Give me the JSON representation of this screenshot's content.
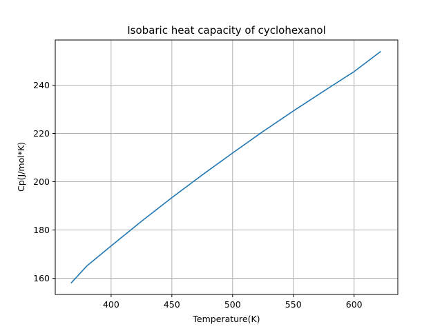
{
  "chart_data": {
    "type": "line",
    "title": "Isobaric heat capacity of cyclohexanol",
    "xlabel": "Temperature(K)",
    "ylabel": "Cp(J/mol*K)",
    "xlim": [
      354,
      636
    ],
    "ylim": [
      153.3,
      258.7
    ],
    "xticks": [
      400,
      450,
      500,
      550,
      600
    ],
    "yticks": [
      160,
      180,
      200,
      220,
      240
    ],
    "grid": true,
    "colors": {
      "line": "#1f77b4",
      "grid": "#b0b0b0",
      "axes": "#000000"
    },
    "series": [
      {
        "x": [
          367,
          380,
          400,
          425,
          450,
          475,
          500,
          525,
          550,
          575,
          600,
          622
        ],
        "y": [
          158.0,
          165.1,
          173.4,
          183.6,
          193.4,
          202.8,
          211.9,
          220.8,
          229.3,
          237.5,
          245.6,
          254.0
        ]
      }
    ]
  }
}
